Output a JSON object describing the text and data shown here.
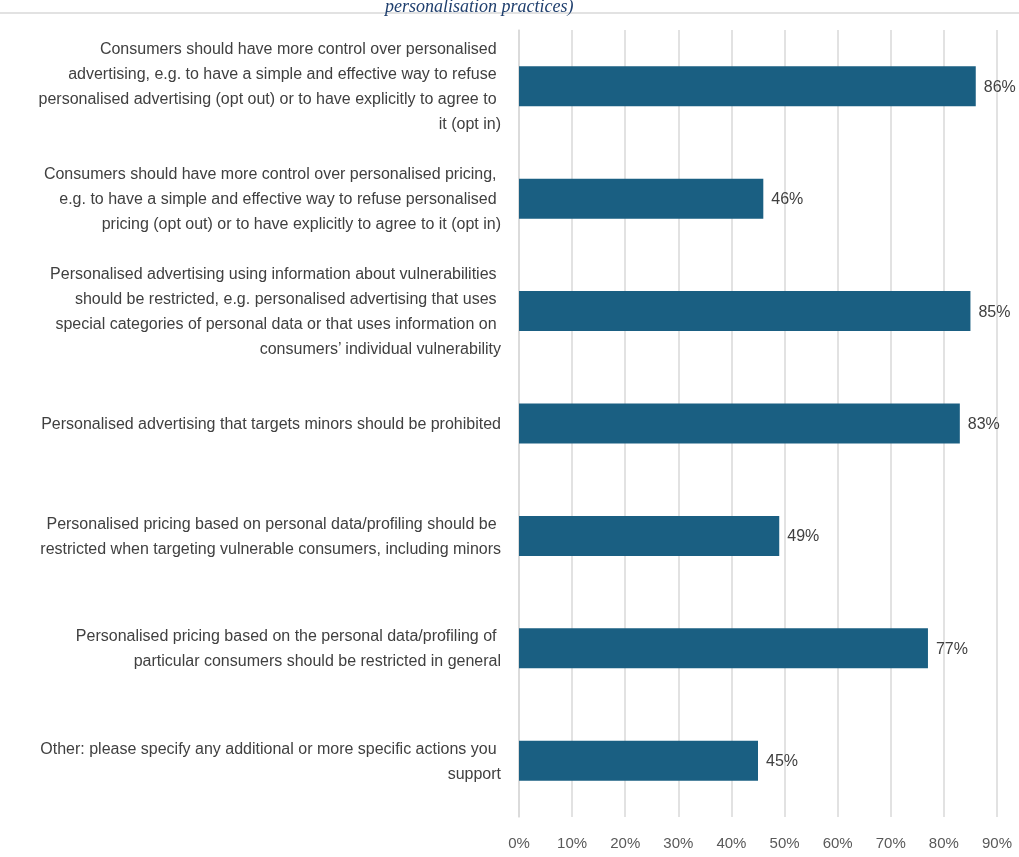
{
  "chart_data": {
    "type": "bar",
    "orientation": "horizontal",
    "title": "personalisation practices)",
    "categories": [
      "Consumers should have more control over personalised advertising, e.g. to have a simple and effective way to refuse personalised advertising (opt out) or to have explicitly to agree to it (opt in)",
      "Consumers should have more control over personalised pricing, e.g. to have a simple and effective way to refuse personalised pricing (opt out) or to have explicitly to agree to it (opt in)",
      "Personalised advertising using information about vulnerabilities should be restricted, e.g. personalised advertising that uses special categories of personal data or that uses information on consumers’ individual vulnerability",
      "Personalised advertising that targets minors should be prohibited",
      "Personalised pricing based on personal data/profiling should be restricted when targeting vulnerable consumers, including minors",
      "Personalised pricing based on the personal data/profiling of particular consumers should be restricted in general",
      "Other: please specify any additional or more specific actions you support"
    ],
    "values": [
      86,
      46,
      85,
      83,
      49,
      77,
      45
    ],
    "color": "#1a5f82",
    "xlim": [
      0,
      90
    ],
    "xticks": [
      {
        "value": 0,
        "label": "0%"
      },
      {
        "value": 10,
        "label": "10%"
      },
      {
        "value": 20,
        "label": "20%"
      },
      {
        "value": 30,
        "label": "30%"
      },
      {
        "value": 40,
        "label": "40%"
      },
      {
        "value": 50,
        "label": "50%"
      },
      {
        "value": 60,
        "label": "60%"
      },
      {
        "value": 70,
        "label": "70%"
      },
      {
        "value": 80,
        "label": "80%"
      },
      {
        "value": 90,
        "label": "90%"
      }
    ],
    "value_labels": [
      "86%",
      "46%",
      "85%",
      "83%",
      "49%",
      "77%",
      "45%"
    ],
    "grid": "x"
  }
}
